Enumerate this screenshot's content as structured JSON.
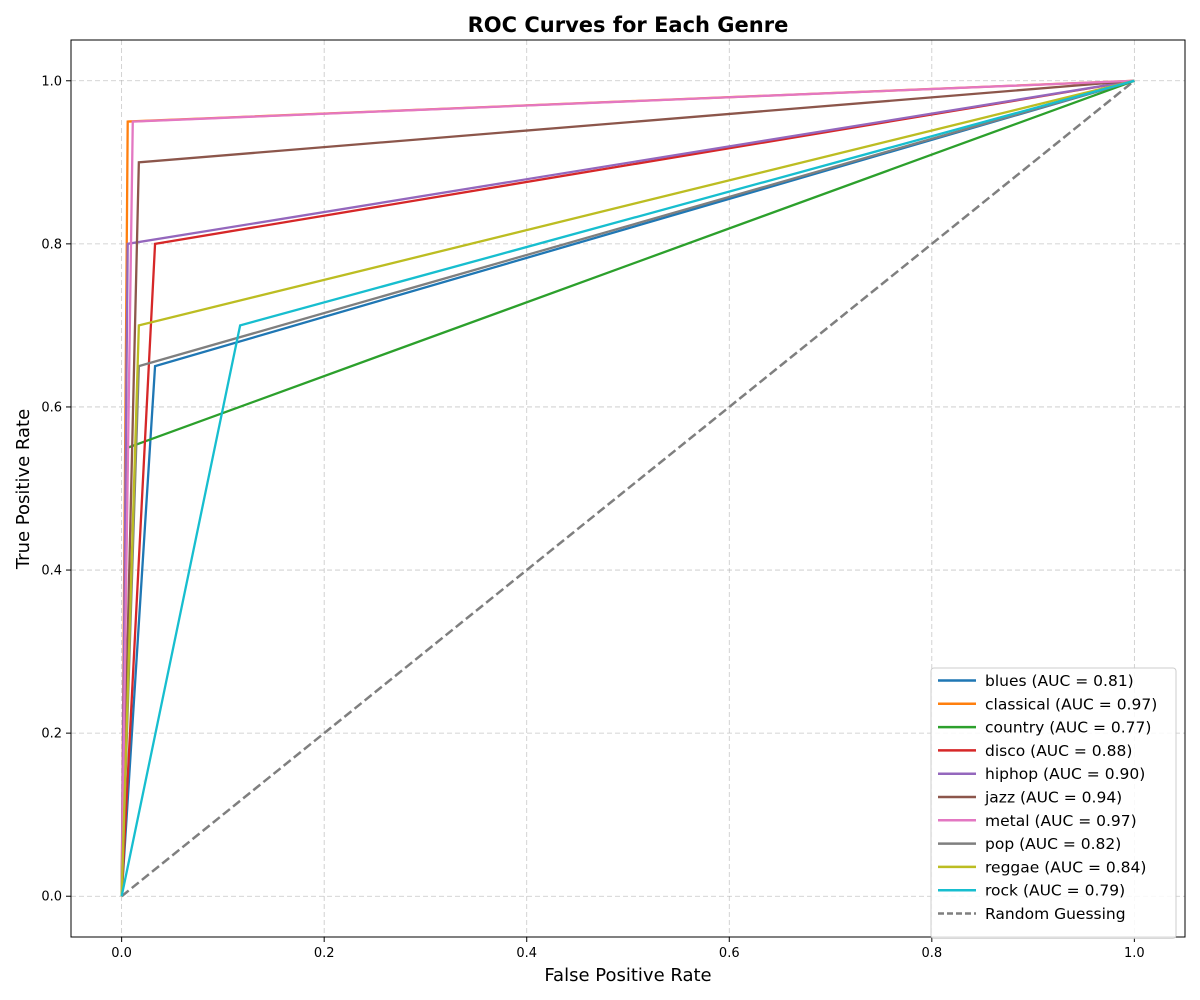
{
  "chart_data": {
    "type": "line",
    "title": "ROC Curves for Each Genre",
    "xlabel": "False Positive Rate",
    "ylabel": "True Positive Rate",
    "xlim": [
      -0.05,
      1.05
    ],
    "ylim": [
      -0.05,
      1.05
    ],
    "xticks": [
      "0.0",
      "0.2",
      "0.4",
      "0.6",
      "0.8",
      "1.0"
    ],
    "yticks": [
      "0.0",
      "0.2",
      "0.4",
      "0.6",
      "0.8",
      "1.0"
    ],
    "grid": true,
    "legend_position": "lower-right",
    "series": [
      {
        "name": "blues (AUC = 0.81)",
        "color": "#1f77b4",
        "x": [
          0,
          0.033,
          1
        ],
        "y": [
          0,
          0.65,
          1
        ]
      },
      {
        "name": "classical (AUC = 0.97)",
        "color": "#ff7f0e",
        "x": [
          0,
          0.006,
          1
        ],
        "y": [
          0,
          0.95,
          1
        ]
      },
      {
        "name": "country (AUC = 0.77)",
        "color": "#2ca02c",
        "x": [
          0,
          0.006,
          1
        ],
        "y": [
          0,
          0.55,
          1
        ]
      },
      {
        "name": "disco (AUC = 0.88)",
        "color": "#d62728",
        "x": [
          0,
          0.033,
          1
        ],
        "y": [
          0,
          0.8,
          1
        ]
      },
      {
        "name": "hiphop (AUC = 0.90)",
        "color": "#9467bd",
        "x": [
          0,
          0.006,
          1
        ],
        "y": [
          0,
          0.8,
          1
        ]
      },
      {
        "name": "jazz (AUC = 0.94)",
        "color": "#8c564b",
        "x": [
          0,
          0.017,
          1
        ],
        "y": [
          0,
          0.9,
          1
        ]
      },
      {
        "name": "metal (AUC = 0.97)",
        "color": "#e377c2",
        "x": [
          0,
          0.011,
          1
        ],
        "y": [
          0,
          0.95,
          1
        ]
      },
      {
        "name": "pop (AUC = 0.82)",
        "color": "#7f7f7f",
        "x": [
          0,
          0.017,
          1
        ],
        "y": [
          0,
          0.65,
          1
        ]
      },
      {
        "name": "reggae (AUC = 0.84)",
        "color": "#bcbd22",
        "x": [
          0,
          0.017,
          1
        ],
        "y": [
          0,
          0.7,
          1
        ]
      },
      {
        "name": "rock (AUC = 0.79)",
        "color": "#17becf",
        "x": [
          0,
          0.117,
          1
        ],
        "y": [
          0,
          0.7,
          1
        ]
      }
    ],
    "reference_line": {
      "name": "Random Guessing",
      "color": "#7f7f7f",
      "style": "dashed",
      "x": [
        0,
        1
      ],
      "y": [
        0,
        1
      ]
    }
  }
}
